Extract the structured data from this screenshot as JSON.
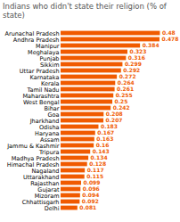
{
  "chart_data": {
    "type": "bar",
    "orientation": "horizontal",
    "title": "Indians who didn't state their religion (% of state)",
    "categories": [
      "Delhi",
      "Chhattisgarh",
      "Mizoram",
      "Gujarat",
      "Rajasthan",
      "Uttarakhand",
      "Nagaland",
      "Himachal Pradesh",
      "Madhya Pradesh",
      "Tripura",
      "Jammu & Kashmir",
      "Assam",
      "Haryana",
      "Odisha",
      "Jharkhand",
      "Goa",
      "Bihar",
      "West Bengal",
      "Maharashtra",
      "Tamil Nadu",
      "Kerala",
      "Karnataka",
      "Uttar Pradesh",
      "Sikkim",
      "Punjab",
      "Meghalaya",
      "Manipur",
      "Andhra Pradesh",
      "Arunachal Pradesh"
    ],
    "values": [
      0.081,
      0.092,
      0.094,
      0.096,
      0.099,
      0.115,
      0.117,
      0.128,
      0.134,
      0.143,
      0.16,
      0.163,
      0.167,
      0.183,
      0.207,
      0.208,
      0.242,
      0.25,
      0.255,
      0.261,
      0.264,
      0.272,
      0.292,
      0.299,
      0.316,
      0.323,
      0.384,
      0.478,
      0.48
    ],
    "color": "#f05a00",
    "xlim": [
      0,
      0.56
    ],
    "data_labels": true,
    "tick_labels": "y",
    "grid": false
  }
}
